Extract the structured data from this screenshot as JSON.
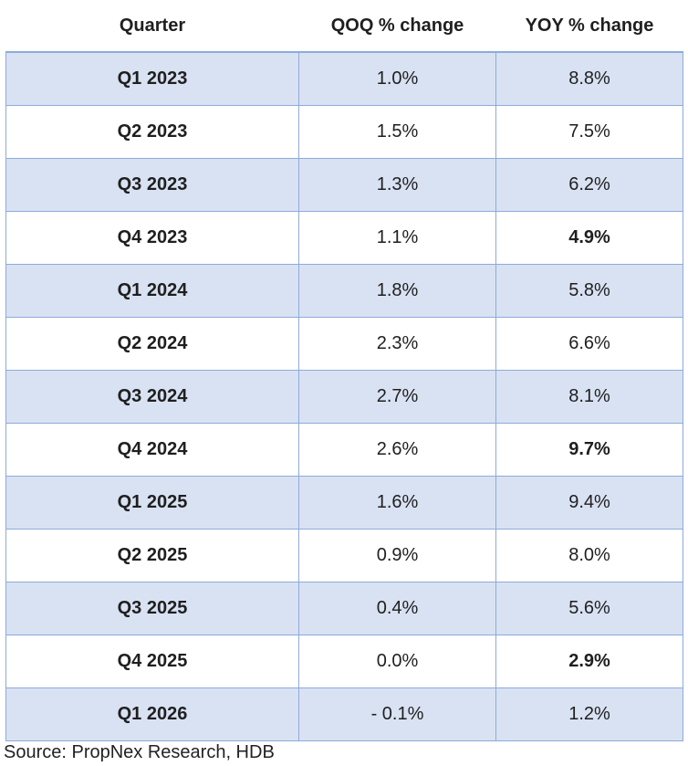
{
  "chart_data": {
    "type": "table",
    "columns": [
      "Quarter",
      "QOQ % change",
      "YOY % change"
    ],
    "rows": [
      {
        "quarter": "Q1 2023",
        "qoq": "1.0%",
        "yoy": "8.8%",
        "yoy_bold": false
      },
      {
        "quarter": "Q2 2023",
        "qoq": "1.5%",
        "yoy": "7.5%",
        "yoy_bold": false
      },
      {
        "quarter": "Q3 2023",
        "qoq": "1.3%",
        "yoy": "6.2%",
        "yoy_bold": false
      },
      {
        "quarter": "Q4 2023",
        "qoq": "1.1%",
        "yoy": "4.9%",
        "yoy_bold": true
      },
      {
        "quarter": "Q1 2024",
        "qoq": "1.8%",
        "yoy": "5.8%",
        "yoy_bold": false
      },
      {
        "quarter": "Q2 2024",
        "qoq": "2.3%",
        "yoy": "6.6%",
        "yoy_bold": false
      },
      {
        "quarter": "Q3 2024",
        "qoq": "2.7%",
        "yoy": "8.1%",
        "yoy_bold": false
      },
      {
        "quarter": "Q4 2024",
        "qoq": "2.6%",
        "yoy": "9.7%",
        "yoy_bold": true
      },
      {
        "quarter": "Q1 2025",
        "qoq": "1.6%",
        "yoy": "9.4%",
        "yoy_bold": false
      },
      {
        "quarter": "Q2 2025",
        "qoq": "0.9%",
        "yoy": "8.0%",
        "yoy_bold": false
      },
      {
        "quarter": "Q3 2025",
        "qoq": "0.4%",
        "yoy": "5.6%",
        "yoy_bold": false
      },
      {
        "quarter": "Q4 2025",
        "qoq": "0.0%",
        "yoy": "2.9%",
        "yoy_bold": true
      },
      {
        "quarter": "Q1 2026",
        "qoq": "- 0.1%",
        "yoy": "1.2%",
        "yoy_bold": false
      }
    ],
    "shaded_rows": "odd",
    "colors": {
      "shade": "#d9e2f3",
      "border": "#8eaadb"
    }
  },
  "source": "Source: PropNex Research, HDB"
}
